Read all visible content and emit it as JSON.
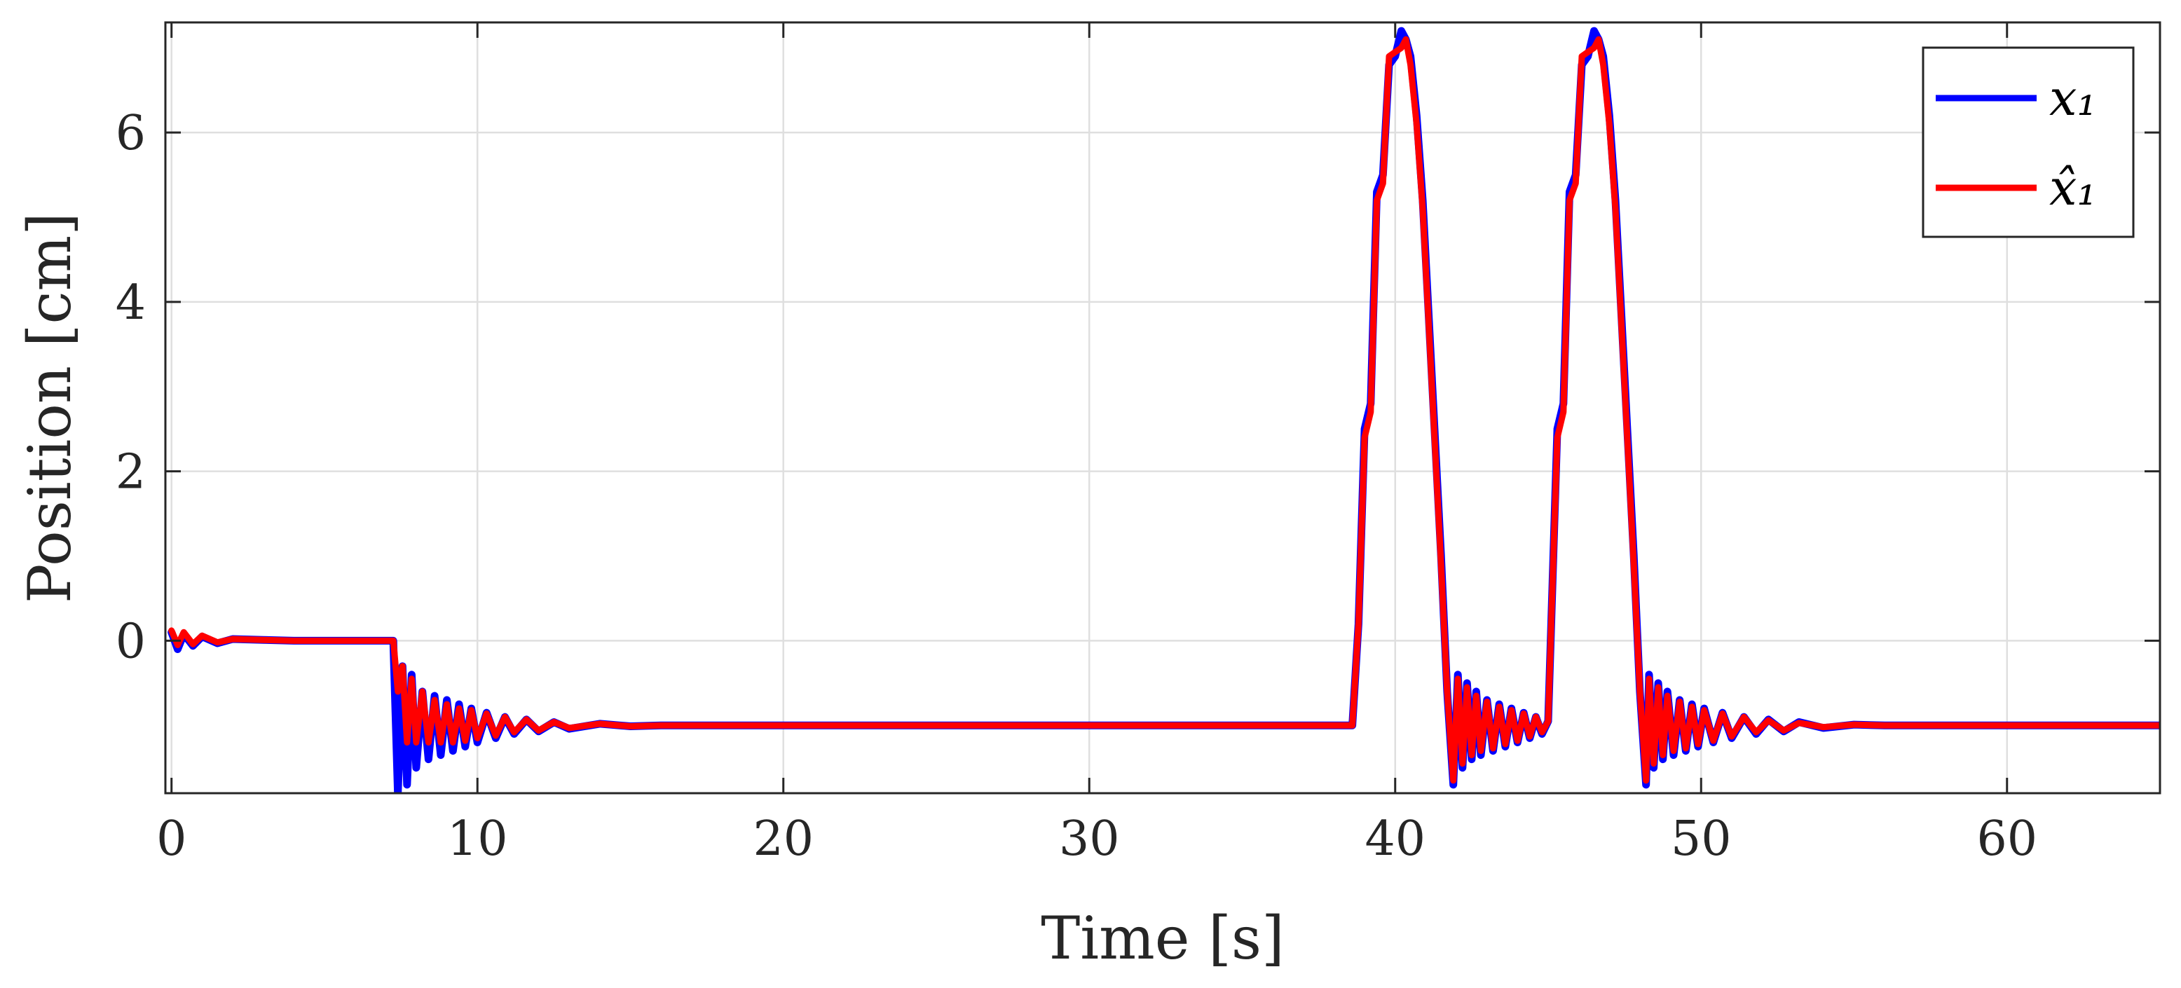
{
  "chart_data": {
    "type": "line",
    "xlabel": "Time [s]",
    "ylabel": "Position [cm]",
    "xlim": [
      -0.2,
      65
    ],
    "ylim": [
      -1.8,
      7.3
    ],
    "xticks": [
      0,
      10,
      20,
      30,
      40,
      50,
      60
    ],
    "yticks": [
      0,
      2,
      4,
      6
    ],
    "grid": true,
    "legend_position": "top-right",
    "series": [
      {
        "name": "x1",
        "legend_label": "x₁",
        "color": "#0000ff",
        "x": [
          0,
          0.2,
          0.4,
          0.7,
          1.0,
          1.5,
          2.0,
          3.0,
          4.0,
          5.0,
          6.0,
          7.0,
          7.25,
          7.4,
          7.55,
          7.7,
          7.85,
          8.0,
          8.2,
          8.4,
          8.6,
          8.8,
          9.0,
          9.2,
          9.4,
          9.6,
          9.8,
          10.0,
          10.3,
          10.6,
          10.9,
          11.2,
          11.6,
          12.0,
          12.5,
          13.0,
          14.0,
          15.0,
          16.0,
          20.0,
          30.0,
          38.6,
          38.8,
          39.0,
          39.2,
          39.4,
          39.6,
          39.8,
          40.0,
          40.2,
          40.35,
          40.5,
          40.7,
          40.9,
          41.1,
          41.3,
          41.5,
          41.7,
          41.9,
          42.05,
          42.2,
          42.35,
          42.5,
          42.65,
          42.8,
          43.0,
          43.2,
          43.4,
          43.6,
          43.8,
          44.0,
          44.2,
          44.4,
          44.6,
          44.8,
          45.0,
          45.1,
          45.3,
          45.5,
          45.7,
          45.9,
          46.1,
          46.3,
          46.5,
          46.65,
          46.8,
          47.0,
          47.2,
          47.4,
          47.6,
          47.8,
          48.0,
          48.2,
          48.3,
          48.45,
          48.6,
          48.75,
          48.9,
          49.1,
          49.3,
          49.5,
          49.7,
          49.9,
          50.1,
          50.4,
          50.7,
          51.0,
          51.4,
          51.8,
          52.2,
          52.7,
          53.2,
          54.0,
          55.0,
          56.0,
          60.0,
          65.0
        ],
        "y": [
          0.1,
          -0.1,
          0.08,
          -0.06,
          0.05,
          -0.03,
          0.02,
          0.01,
          0.0,
          0.0,
          0.0,
          0.0,
          0.0,
          -1.8,
          -0.3,
          -1.7,
          -0.4,
          -1.5,
          -0.6,
          -1.4,
          -0.65,
          -1.35,
          -0.7,
          -1.3,
          -0.75,
          -1.25,
          -0.8,
          -1.2,
          -0.85,
          -1.15,
          -0.9,
          -1.1,
          -0.93,
          -1.07,
          -0.96,
          -1.04,
          -0.98,
          -1.01,
          -1.0,
          -1.0,
          -1.0,
          -1.0,
          0.2,
          2.5,
          2.8,
          5.3,
          5.5,
          6.8,
          6.9,
          7.2,
          7.1,
          6.9,
          6.2,
          5.2,
          3.8,
          2.4,
          1.0,
          -0.6,
          -1.7,
          -0.4,
          -1.5,
          -0.5,
          -1.4,
          -0.6,
          -1.35,
          -0.7,
          -1.3,
          -0.75,
          -1.25,
          -0.8,
          -1.2,
          -0.85,
          -1.15,
          -0.9,
          -1.1,
          -0.95,
          0.2,
          2.5,
          2.8,
          5.3,
          5.5,
          6.8,
          6.9,
          7.2,
          7.1,
          6.9,
          6.2,
          5.2,
          3.8,
          2.4,
          1.0,
          -0.6,
          -1.7,
          -0.4,
          -1.5,
          -0.5,
          -1.4,
          -0.6,
          -1.35,
          -0.7,
          -1.3,
          -0.75,
          -1.25,
          -0.8,
          -1.2,
          -0.85,
          -1.15,
          -0.9,
          -1.1,
          -0.93,
          -1.07,
          -0.96,
          -1.03,
          -0.99,
          -1.0,
          -1.0,
          -1.0
        ]
      },
      {
        "name": "x1_hat",
        "legend_label": "x̂₁",
        "color": "#ff0000",
        "x": [
          0,
          0.2,
          0.4,
          0.7,
          1.0,
          1.5,
          2.0,
          3.0,
          4.0,
          5.0,
          6.0,
          7.0,
          7.25,
          7.4,
          7.55,
          7.7,
          7.85,
          8.0,
          8.2,
          8.4,
          8.6,
          8.8,
          9.0,
          9.2,
          9.4,
          9.6,
          9.8,
          10.0,
          10.3,
          10.6,
          10.9,
          11.2,
          11.6,
          12.0,
          12.5,
          13.0,
          14.0,
          15.0,
          16.0,
          20.0,
          30.0,
          38.6,
          38.8,
          39.0,
          39.2,
          39.4,
          39.6,
          39.8,
          40.0,
          40.2,
          40.35,
          40.5,
          40.7,
          40.9,
          41.1,
          41.3,
          41.5,
          41.7,
          41.9,
          42.05,
          42.2,
          42.35,
          42.5,
          42.65,
          42.8,
          43.0,
          43.2,
          43.4,
          43.6,
          43.8,
          44.0,
          44.2,
          44.4,
          44.6,
          44.8,
          45.0,
          45.1,
          45.3,
          45.5,
          45.7,
          45.9,
          46.1,
          46.3,
          46.5,
          46.65,
          46.8,
          47.0,
          47.2,
          47.4,
          47.6,
          47.8,
          48.0,
          48.2,
          48.3,
          48.45,
          48.6,
          48.75,
          48.9,
          49.1,
          49.3,
          49.5,
          49.7,
          49.9,
          50.1,
          50.4,
          50.7,
          51.0,
          51.4,
          51.8,
          52.2,
          52.7,
          53.2,
          54.0,
          55.0,
          56.0,
          60.0,
          65.0
        ],
        "y": [
          0.12,
          -0.05,
          0.1,
          -0.04,
          0.06,
          -0.02,
          0.02,
          0.01,
          0.0,
          0.0,
          0.0,
          0.0,
          0.0,
          -0.6,
          -0.3,
          -1.2,
          -0.45,
          -1.2,
          -0.6,
          -1.2,
          -0.7,
          -1.2,
          -0.75,
          -1.2,
          -0.8,
          -1.18,
          -0.82,
          -1.15,
          -0.86,
          -1.12,
          -0.9,
          -1.08,
          -0.93,
          -1.06,
          -0.96,
          -1.03,
          -0.98,
          -1.01,
          -1.0,
          -1.0,
          -1.0,
          -1.0,
          0.2,
          2.4,
          2.7,
          5.2,
          5.4,
          6.9,
          6.95,
          7.0,
          7.1,
          6.8,
          6.1,
          5.1,
          3.7,
          2.3,
          0.9,
          -0.6,
          -1.65,
          -0.45,
          -1.45,
          -0.55,
          -1.35,
          -0.65,
          -1.3,
          -0.72,
          -1.27,
          -0.78,
          -1.22,
          -0.82,
          -1.18,
          -0.86,
          -1.13,
          -0.9,
          -1.08,
          -0.95,
          0.2,
          2.4,
          2.7,
          5.2,
          5.4,
          6.9,
          6.95,
          7.0,
          7.1,
          6.8,
          6.1,
          5.1,
          3.7,
          2.3,
          0.9,
          -0.6,
          -1.65,
          -0.45,
          -1.45,
          -0.55,
          -1.35,
          -0.65,
          -1.3,
          -0.72,
          -1.27,
          -0.78,
          -1.22,
          -0.82,
          -1.18,
          -0.86,
          -1.13,
          -0.9,
          -1.08,
          -0.94,
          -1.06,
          -0.97,
          -1.02,
          -0.99,
          -1.0,
          -1.0,
          -1.0
        ]
      }
    ]
  }
}
